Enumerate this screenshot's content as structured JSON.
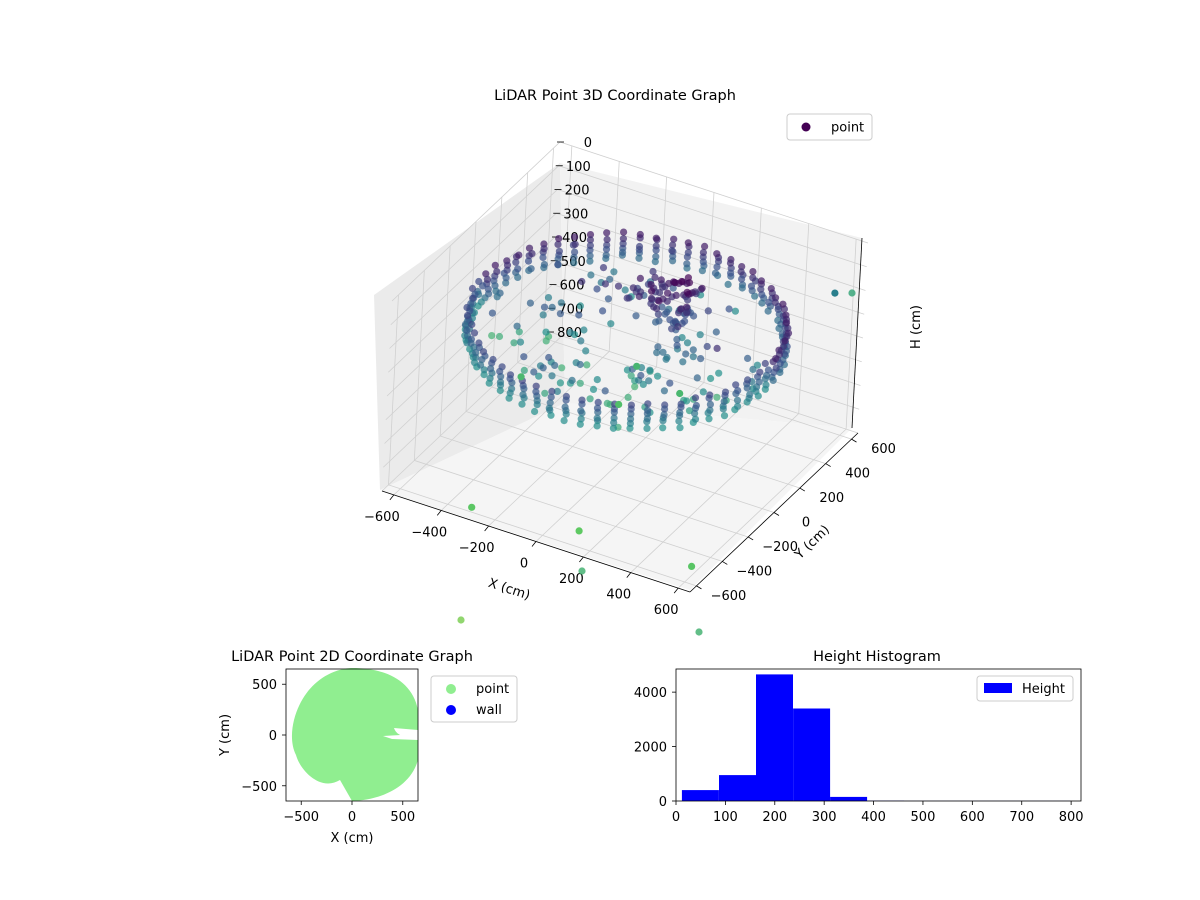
{
  "chart_data": [
    {
      "type": "scatter",
      "projection": "3d",
      "title": "LiDAR Point 3D Coordinate Graph",
      "xlabel": "X (cm)",
      "ylabel": "Y (cm)",
      "zlabel": "H (cm)",
      "x_ticks": [
        "−600",
        "−400",
        "−200",
        "0",
        "200",
        "400",
        "600"
      ],
      "y_ticks": [
        "600",
        "400",
        "200",
        "0",
        "−200",
        "−400",
        "−600"
      ],
      "z_ticks": [
        "0",
        "100",
        "200",
        "300",
        "400",
        "500",
        "600",
        "700",
        "800"
      ],
      "xlim": [
        -650,
        650
      ],
      "ylim": [
        -650,
        650
      ],
      "zlim": [
        0,
        800
      ],
      "z_inverted": true,
      "grid": true,
      "legend": {
        "position": "top-right",
        "entries": [
          "point"
        ]
      },
      "colormap": "viridis",
      "series": [
        {
          "name": "point",
          "description_values": {
            "ring_radius_cm": 600,
            "ring_top_height_cm": 200,
            "ring_bottom_height_cm": 300,
            "outliers": [
              {
                "x": -480,
                "y": 100,
                "h": 650
              },
              {
                "x": -130,
                "y": 350,
                "h": 620
              },
              {
                "x": -120,
                "y": 200,
                "h": 700
              },
              {
                "x": 80,
                "y": 300,
                "h": 640
              },
              {
                "x": 100,
                "y": -500,
                "h": 800
              },
              {
                "x": -300,
                "y": -600,
                "h": 780
              },
              {
                "x": 600,
                "y": -550,
                "h": 760
              },
              {
                "x": 600,
                "y": 500,
                "h": 150
              }
            ]
          }
        }
      ]
    },
    {
      "type": "scatter",
      "title": "LiDAR Point 2D Coordinate Graph",
      "xlabel": "X (cm)",
      "ylabel": "Y (cm)",
      "x_ticks": [
        "−500",
        "0",
        "500"
      ],
      "y_ticks": [
        "500",
        "0",
        "−500"
      ],
      "xlim": [
        -650,
        650
      ],
      "ylim": [
        -650,
        650
      ],
      "legend": {
        "position": "outside-right",
        "entries": [
          "point",
          "wall"
        ]
      },
      "series": [
        {
          "name": "point",
          "color": "#90ee90",
          "shape": "filled disc radius ~600 with a narrow gap near (300, 0)"
        },
        {
          "name": "wall",
          "color": "#0000ff",
          "values": []
        }
      ]
    },
    {
      "type": "bar",
      "subtype": "histogram",
      "title": "Height Histogram",
      "xlabel": "",
      "ylabel": "",
      "x_ticks": [
        "0",
        "100",
        "200",
        "300",
        "400",
        "500",
        "600",
        "700",
        "800"
      ],
      "y_ticks": [
        "0",
        "2000",
        "4000"
      ],
      "xlim": [
        0,
        820
      ],
      "ylim": [
        0,
        4850
      ],
      "bin_edges": [
        12,
        87,
        162,
        237,
        312,
        387,
        462,
        537,
        612,
        687,
        762,
        800
      ],
      "values": [
        400,
        950,
        4650,
        3400,
        150,
        10,
        5,
        5,
        3,
        3,
        3
      ],
      "color": "#0000ff",
      "legend": {
        "position": "top-right",
        "entries": [
          "Height"
        ]
      }
    }
  ]
}
